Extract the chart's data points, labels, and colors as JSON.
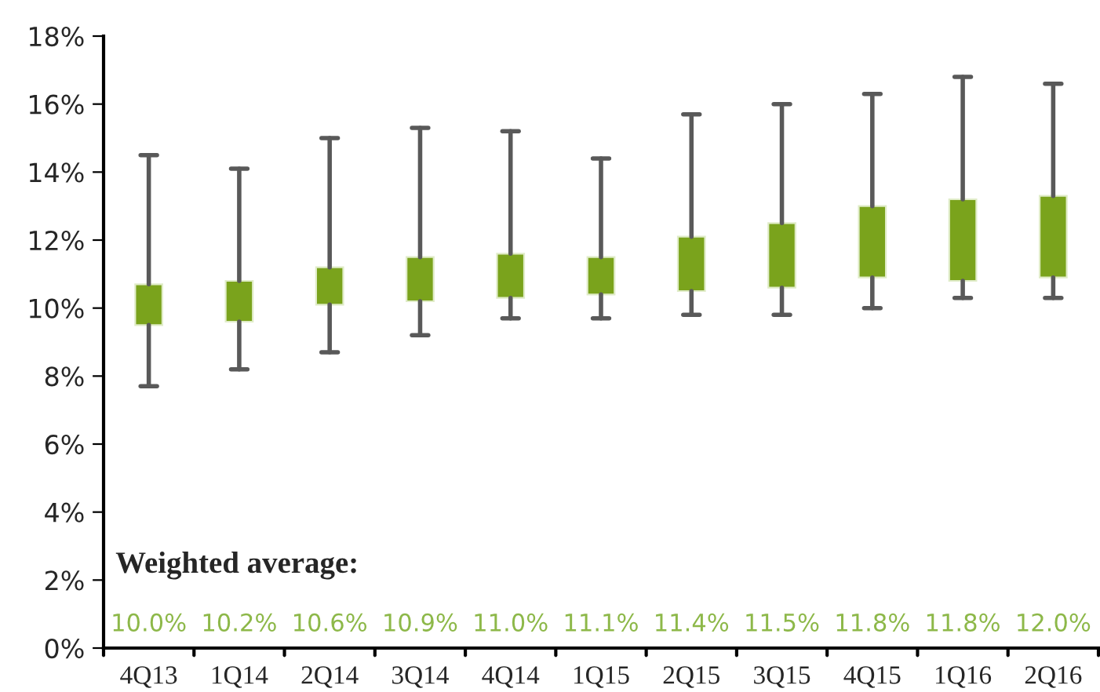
{
  "chart_data": {
    "type": "box",
    "categories": [
      "4Q13",
      "1Q14",
      "2Q14",
      "3Q14",
      "4Q14",
      "1Q15",
      "2Q15",
      "3Q15",
      "4Q15",
      "1Q16",
      "2Q16"
    ],
    "color": "#7aa31c",
    "boxes": [
      {
        "low": 7.7,
        "q1": 9.5,
        "q3": 10.7,
        "high": 14.5
      },
      {
        "low": 8.2,
        "q1": 9.6,
        "q3": 10.8,
        "high": 14.1
      },
      {
        "low": 8.7,
        "q1": 10.1,
        "q3": 11.2,
        "high": 15.0
      },
      {
        "low": 9.2,
        "q1": 10.2,
        "q3": 11.5,
        "high": 15.3
      },
      {
        "low": 9.7,
        "q1": 10.3,
        "q3": 11.6,
        "high": 15.2
      },
      {
        "low": 9.7,
        "q1": 10.4,
        "q3": 11.5,
        "high": 14.4
      },
      {
        "low": 9.8,
        "q1": 10.5,
        "q3": 12.1,
        "high": 15.7
      },
      {
        "low": 9.8,
        "q1": 10.6,
        "q3": 12.5,
        "high": 16.0
      },
      {
        "low": 10.0,
        "q1": 10.9,
        "q3": 13.0,
        "high": 16.3
      },
      {
        "low": 10.3,
        "q1": 10.8,
        "q3": 13.2,
        "high": 16.8
      },
      {
        "low": 10.3,
        "q1": 10.9,
        "q3": 13.3,
        "high": 16.6
      }
    ],
    "value_labels": [
      "10.0%",
      "10.2%",
      "10.6%",
      "10.9%",
      "11.0%",
      "11.1%",
      "11.4%",
      "11.5%",
      "11.8%",
      "11.8%",
      "12.0%"
    ],
    "annotations": [
      "Weighted average:"
    ],
    "ylim": [
      0,
      18
    ],
    "yticks": [
      {
        "value": 0,
        "label": "0%"
      },
      {
        "value": 2,
        "label": "2%"
      },
      {
        "value": 4,
        "label": "4%"
      },
      {
        "value": 6,
        "label": "6%"
      },
      {
        "value": 8,
        "label": "8%"
      },
      {
        "value": 10,
        "label": "10%"
      },
      {
        "value": 12,
        "label": "12%"
      },
      {
        "value": 14,
        "label": "14%"
      },
      {
        "value": 16,
        "label": "16%"
      },
      {
        "value": 18,
        "label": "18%"
      }
    ],
    "grid": false,
    "legend": false
  }
}
